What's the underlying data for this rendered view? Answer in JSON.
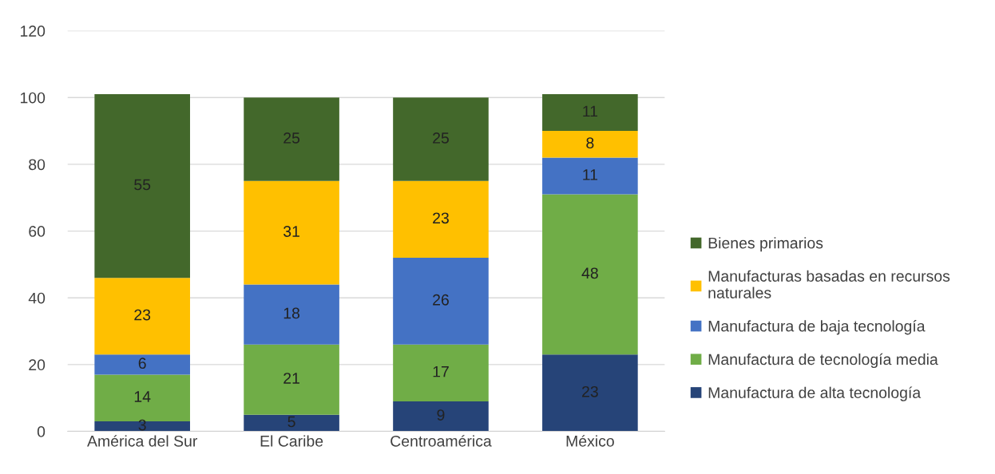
{
  "chart_data": {
    "type": "bar",
    "stacked": true,
    "categories": [
      "América del Sur",
      "El Caribe",
      "Centroamérica",
      "México"
    ],
    "series": [
      {
        "name": "Manufactura de alta tecnología",
        "color": "#264478",
        "values": [
          3,
          5,
          9,
          23
        ]
      },
      {
        "name": "Manufactura de tecnología media",
        "color": "#70ad47",
        "values": [
          14,
          21,
          17,
          48
        ]
      },
      {
        "name": "Manufactura de baja tecnología",
        "color": "#4472c4",
        "values": [
          6,
          18,
          26,
          11
        ]
      },
      {
        "name": "Manufacturas basadas en recursos naturales",
        "color": "#ffc000",
        "values": [
          23,
          31,
          23,
          8
        ]
      },
      {
        "name": "Bienes primarios",
        "color": "#43682b",
        "values": [
          55,
          25,
          25,
          11
        ]
      }
    ],
    "ylim": [
      0,
      120
    ],
    "yticks": [
      0,
      20,
      40,
      60,
      80,
      100,
      120
    ],
    "grid": "y",
    "legend": "right",
    "data_labels": true
  }
}
